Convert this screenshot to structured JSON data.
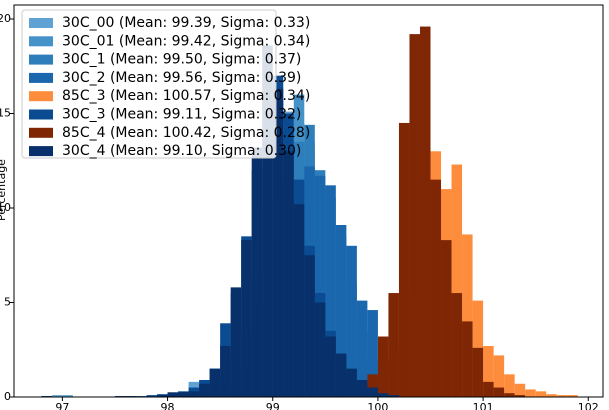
{
  "chart_data": {
    "type": "histogram",
    "y_label": "Percentage",
    "xlim": [
      96.54,
      102.14
    ],
    "ylim": [
      0,
      20.74
    ],
    "xticks": [
      97,
      98,
      99,
      100,
      101,
      102
    ],
    "yticks": [
      0,
      5,
      10,
      15,
      20
    ],
    "legend": "upper left",
    "bins": [
      96.8,
      96.9,
      97.0,
      97.1,
      97.2,
      97.3,
      97.4,
      97.5,
      97.6,
      97.7,
      97.8,
      97.9,
      98.0,
      98.1,
      98.2,
      98.3,
      98.4,
      98.5,
      98.6,
      98.7,
      98.8,
      98.9,
      99.0,
      99.1,
      99.2,
      99.3,
      99.4,
      99.5,
      99.6,
      99.7,
      99.8,
      99.9,
      100.0,
      100.1,
      100.2,
      100.3,
      100.4,
      100.5,
      100.6,
      100.7,
      100.8,
      100.9,
      101.0,
      101.1,
      101.2,
      101.3,
      101.4,
      101.5,
      101.6,
      101.7,
      101.8,
      101.9
    ],
    "series": [
      {
        "name": "30C_00 (Mean: 99.39, Sigma: 0.33)",
        "color": "#5fa2d3",
        "values": [
          0,
          0.1,
          0.1,
          0,
          0,
          0,
          0,
          0,
          0,
          0,
          0,
          0,
          0,
          0,
          0.8,
          0.5,
          0.8,
          1.0,
          2.0,
          3.5,
          6.5,
          10.0,
          13.0,
          15.1,
          14.5,
          13.0,
          10.5,
          8.0,
          6.0,
          3.5,
          2.0,
          1.0,
          0.4,
          0,
          0,
          0,
          0,
          0,
          0,
          0,
          0,
          0,
          0,
          0,
          0,
          0,
          0,
          0,
          0,
          0,
          0
        ]
      },
      {
        "name": "30C_01 (Mean: 99.42, Sigma: 0.34)",
        "color": "#4592c8",
        "values": [
          0,
          0,
          0,
          0,
          0,
          0,
          0,
          0,
          0,
          0,
          0,
          0,
          0,
          0,
          0,
          0,
          0,
          0.2,
          0.6,
          1.5,
          3.5,
          6.5,
          10.5,
          14.0,
          16.0,
          13.5,
          11.0,
          8.5,
          6.0,
          4.0,
          2.2,
          1.0,
          0.4,
          0,
          0,
          0,
          0,
          0,
          0,
          0,
          0,
          0,
          0,
          0,
          0,
          0,
          0,
          0,
          0,
          0,
          0
        ]
      },
      {
        "name": "30C_1 (Mean: 99.50, Sigma: 0.37)",
        "color": "#2f7ebc",
        "values": [
          0,
          0,
          0,
          0,
          0,
          0,
          0,
          0,
          0,
          0,
          0,
          0,
          0,
          0,
          0,
          0,
          0,
          0,
          0.3,
          1.0,
          2.5,
          5.0,
          8.5,
          11.5,
          13.5,
          14.4,
          12.0,
          10.5,
          8.5,
          6.0,
          3.5,
          2.0,
          0.8,
          0.3,
          0,
          0,
          0,
          0,
          0,
          0,
          0,
          0,
          0,
          0,
          0,
          0,
          0,
          0,
          0,
          0,
          0
        ]
      },
      {
        "name": "30C_2 (Mean: 99.56, Sigma: 0.39)",
        "color": "#1b67ad",
        "values": [
          0,
          0,
          0,
          0,
          0,
          0,
          0,
          0,
          0,
          0,
          0,
          0,
          0,
          0,
          0,
          0,
          0,
          0.2,
          0.5,
          1.2,
          2.5,
          4.5,
          7.0,
          9.5,
          11.5,
          12.2,
          11.7,
          11.2,
          9.1,
          8.0,
          5.1,
          4.6,
          2.0,
          0.8,
          0.3,
          0,
          0,
          0,
          0,
          0,
          0,
          0,
          0,
          0,
          0,
          0,
          0,
          0,
          0,
          0,
          0
        ]
      },
      {
        "name": "85C_3 (Mean: 100.57, Sigma: 0.34)",
        "color": "#fd8d3c",
        "values": [
          0,
          0,
          0,
          0,
          0,
          0,
          0,
          0,
          0,
          0,
          0,
          0,
          0,
          0,
          0,
          0,
          0,
          0,
          0,
          0,
          0,
          0,
          0,
          0,
          0,
          0,
          0,
          0,
          0,
          0,
          0,
          0.3,
          1.0,
          2.5,
          5.5,
          8.5,
          12.0,
          13.0,
          11.0,
          12.3,
          8.6,
          5.1,
          2.7,
          2.2,
          1.2,
          0.7,
          0.4,
          0.3,
          0.15,
          0.1,
          0.1
        ]
      },
      {
        "name": "30C_3 (Mean: 99.11, Sigma: 0.32)",
        "color": "#0a4b92",
        "values": [
          0,
          0,
          0,
          0,
          0,
          0,
          0,
          0,
          0,
          0.05,
          0.1,
          0.15,
          0.2,
          0.3,
          0.5,
          0.9,
          1.5,
          3.9,
          5.5,
          8.5,
          12.0,
          15.5,
          17.0,
          15.0,
          11.5,
          8.0,
          5.5,
          3.5,
          2.0,
          1.2,
          0.7,
          0.4,
          0.2,
          0.1,
          0,
          0,
          0,
          0,
          0,
          0,
          0,
          0,
          0,
          0,
          0,
          0,
          0,
          0,
          0,
          0,
          0
        ]
      },
      {
        "name": "85C_4 (Mean: 100.42, Sigma: 0.28)",
        "color": "#7f2704",
        "values": [
          0,
          0,
          0,
          0,
          0,
          0,
          0,
          0,
          0,
          0,
          0,
          0,
          0,
          0,
          0,
          0,
          0,
          0,
          0,
          0,
          0,
          0,
          0,
          0,
          0,
          0,
          0,
          0,
          0,
          0,
          0.2,
          1.2,
          3.2,
          5.5,
          14.5,
          19.2,
          19.6,
          11.5,
          8.3,
          5.5,
          4.0,
          2.6,
          0.8,
          0.5,
          0.2,
          0.1,
          0,
          0,
          0,
          0,
          0
        ]
      },
      {
        "name": "30C_4 (Mean: 99.10, Sigma: 0.30)",
        "color": "#08306b",
        "values": [
          0.05,
          0,
          0,
          0,
          0,
          0,
          0,
          0.05,
          0.05,
          0,
          0,
          0.1,
          0.25,
          0.25,
          0.3,
          0.7,
          1.5,
          2.7,
          5.8,
          8.3,
          13.2,
          18.6,
          16.3,
          13.0,
          10.2,
          7.5,
          5.0,
          3.2,
          2.3,
          1.5,
          0.9,
          0.5,
          0.2,
          0.1,
          0,
          0,
          0,
          0,
          0,
          0,
          0,
          0,
          0,
          0,
          0,
          0,
          0,
          0,
          0,
          0,
          0
        ]
      }
    ]
  }
}
